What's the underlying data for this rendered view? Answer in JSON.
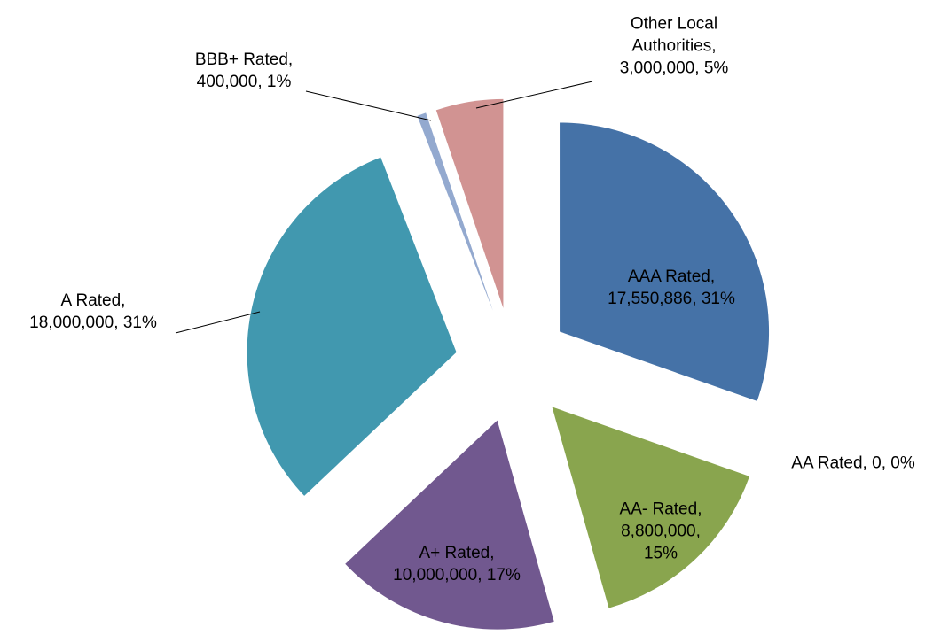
{
  "chart_data": {
    "type": "pie",
    "categories": [
      "AAA Rated",
      "AA Rated",
      "AA- Rated",
      "A+ Rated",
      "A Rated",
      "BBB+ Rated",
      "Other Local Authorities"
    ],
    "values": [
      17550886,
      0,
      8800000,
      10000000,
      18000000,
      400000,
      3000000
    ],
    "value_labels": [
      "17,550,886",
      "0",
      "8,800,000",
      "10,000,000",
      "18,000,000",
      "400,000",
      "3,000,000"
    ],
    "percent_labels": [
      "31%",
      "0%",
      "15%",
      "17%",
      "31%",
      "1%",
      "5%"
    ],
    "label_separator": ", ",
    "colors": [
      "#4572a7",
      "#aa4643",
      "#89a54e",
      "#71588f",
      "#4198af",
      "#93a9cf",
      "#d19392"
    ],
    "exploded": true
  }
}
